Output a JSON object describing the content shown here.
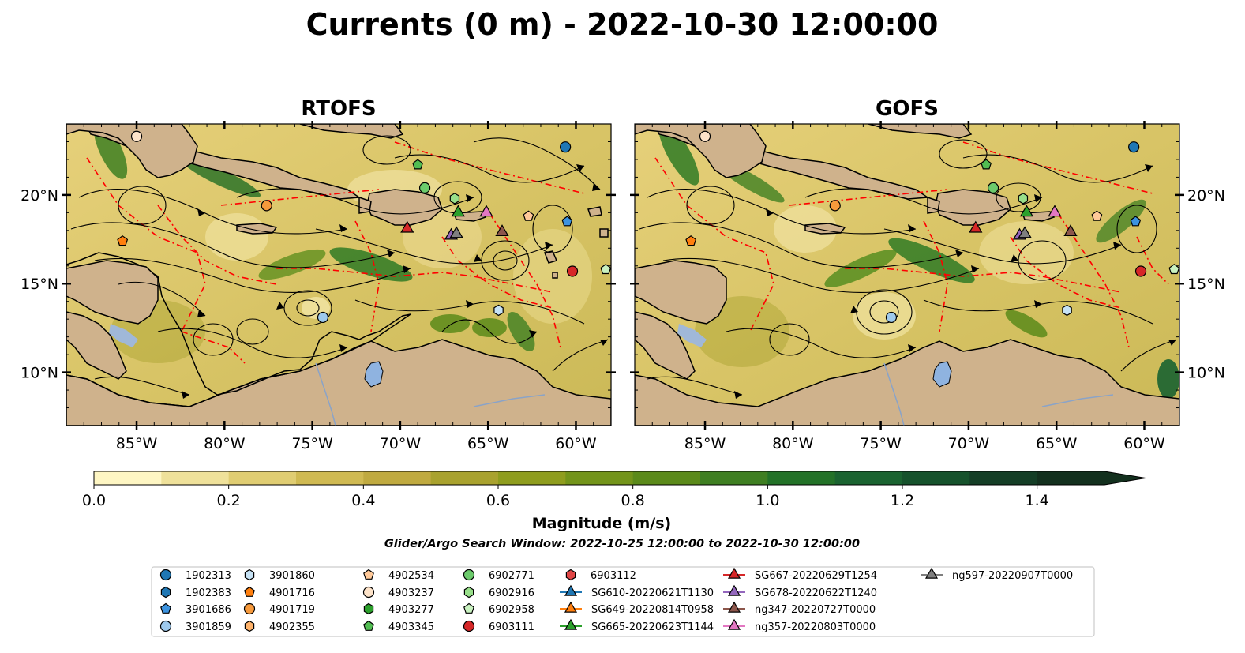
{
  "figure": {
    "suptitle": "Currents (0 m) - 2022-10-30 12:00:00",
    "panels": [
      {
        "title": "RTOFS"
      },
      {
        "title": "GOFS"
      }
    ],
    "colorbar": {
      "label": "Magnitude (m/s)",
      "ticks": [
        "0.0",
        "0.2",
        "0.4",
        "0.6",
        "0.8",
        "1.0",
        "1.2",
        "1.4"
      ],
      "min": 0.0,
      "max": 1.5,
      "levels": 15,
      "extend": "max",
      "colors": [
        "#fef6c3",
        "#efe19a",
        "#e0cd72",
        "#d0ba52",
        "#c0aa40",
        "#a9a22e",
        "#8f9d1e",
        "#73941a",
        "#5b8a1a",
        "#3f7f22",
        "#237228",
        "#1a6330",
        "#16522c",
        "#143e26",
        "#13301e"
      ]
    },
    "search_window": "Glider/Argo Search Window: 2022-10-25 12:00:00 to 2022-10-30 12:00:00",
    "map": {
      "lon_range": [
        -89,
        -58
      ],
      "lat_range": [
        7,
        24
      ],
      "lon_ticks": [
        "85°W",
        "80°W",
        "75°W",
        "70°W",
        "65°W",
        "60°W"
      ],
      "lat_ticks": [
        "20°N",
        "15°N",
        "10°N"
      ],
      "land_color": "#cfb28c",
      "eez_color": "#ff0000",
      "streamline_color": "#000000"
    },
    "legend": [
      {
        "label": "1902313",
        "marker": "circle",
        "color": "#1f77b4"
      },
      {
        "label": "1902383",
        "marker": "hexagon",
        "color": "#1f77b4"
      },
      {
        "label": "3901686",
        "marker": "pentagon",
        "color": "#3c93e0"
      },
      {
        "label": "3901859",
        "marker": "circle",
        "color": "#9ec9ec"
      },
      {
        "label": "3901860",
        "marker": "hexagon",
        "color": "#c6e2f5"
      },
      {
        "label": "4901716",
        "marker": "pentagon",
        "color": "#ff7f0e"
      },
      {
        "label": "4901719",
        "marker": "circle",
        "color": "#f79a3c"
      },
      {
        "label": "4902355",
        "marker": "hexagon",
        "color": "#ffb36b"
      },
      {
        "label": "4902534",
        "marker": "pentagon",
        "color": "#ffc999"
      },
      {
        "label": "4903237",
        "marker": "circle",
        "color": "#fde3c9"
      },
      {
        "label": "4903277",
        "marker": "hexagon",
        "color": "#2ca02c"
      },
      {
        "label": "4903345",
        "marker": "pentagon",
        "color": "#52bd52"
      },
      {
        "label": "6902771",
        "marker": "circle",
        "color": "#6ccb6c"
      },
      {
        "label": "6902916",
        "marker": "hexagon",
        "color": "#98df8a"
      },
      {
        "label": "6902958",
        "marker": "pentagon",
        "color": "#c9f2c0"
      },
      {
        "label": "6903111",
        "marker": "circle",
        "color": "#d62728"
      },
      {
        "label": "6903112",
        "marker": "hexagon",
        "color": "#e04646"
      },
      {
        "label": "SG610-20220621T1130",
        "marker": "triangle",
        "color": "#1f77b4"
      },
      {
        "label": "SG649-20220814T0958",
        "marker": "triangle",
        "color": "#ff7f0e"
      },
      {
        "label": "SG665-20220623T1144",
        "marker": "triangle",
        "color": "#2ca02c"
      },
      {
        "label": "SG667-20220629T1254",
        "marker": "triangle",
        "color": "#d62728"
      },
      {
        "label": "SG678-20220622T1240",
        "marker": "triangle",
        "color": "#9467bd"
      },
      {
        "label": "ng347-20220727T0000",
        "marker": "triangle",
        "color": "#8c564b"
      },
      {
        "label": "ng357-20220803T0000",
        "marker": "triangle",
        "color": "#e377c2"
      },
      {
        "label": "ng597-20220907T0000",
        "marker": "triangle",
        "color": "#7f7f7f"
      }
    ]
  },
  "chart_data": {
    "type": "map",
    "projection": "PlateCarree",
    "extent": {
      "lon": [
        -89,
        -58
      ],
      "lat": [
        7,
        24
      ]
    },
    "colorbar_range": [
      0.0,
      1.5
    ],
    "points": [
      {
        "id": "4903237",
        "lon": -85.0,
        "lat": 23.3,
        "marker": "circle",
        "color": "#fde3c9"
      },
      {
        "id": "1902313",
        "lon": -60.6,
        "lat": 22.7,
        "marker": "circle",
        "color": "#1f77b4"
      },
      {
        "id": "4903345",
        "lon": -69.0,
        "lat": 21.7,
        "marker": "pentagon",
        "color": "#52bd52"
      },
      {
        "id": "6902771",
        "lon": -68.6,
        "lat": 20.4,
        "marker": "circle",
        "color": "#6ccb6c"
      },
      {
        "id": "6902916",
        "lon": -66.9,
        "lat": 19.8,
        "marker": "hexagon",
        "color": "#98df8a"
      },
      {
        "id": "4901719",
        "lon": -77.6,
        "lat": 19.4,
        "marker": "circle",
        "color": "#f79a3c"
      },
      {
        "id": "4902534",
        "lon": -62.7,
        "lat": 18.8,
        "marker": "pentagon",
        "color": "#ffc999"
      },
      {
        "id": "3901686",
        "lon": -60.5,
        "lat": 18.5,
        "marker": "pentagon",
        "color": "#3c93e0"
      },
      {
        "id": "4901716",
        "lon": -85.8,
        "lat": 17.4,
        "marker": "pentagon",
        "color": "#ff7f0e"
      },
      {
        "id": "6902958",
        "lon": -58.3,
        "lat": 15.8,
        "marker": "pentagon",
        "color": "#c9f2c0"
      },
      {
        "id": "6903111",
        "lon": -60.2,
        "lat": 15.7,
        "marker": "circle",
        "color": "#d62728"
      },
      {
        "id": "3901860",
        "lon": -64.4,
        "lat": 13.5,
        "marker": "hexagon",
        "color": "#c6e2f5"
      },
      {
        "id": "3901859",
        "lon": -74.4,
        "lat": 13.1,
        "marker": "circle",
        "color": "#9ec9ec"
      },
      {
        "id": "SG665-20220623T1144",
        "lon": -66.7,
        "lat": 19.0,
        "marker": "triangle",
        "color": "#2ca02c"
      },
      {
        "id": "ng357-20220803T0000",
        "lon": -65.1,
        "lat": 19.0,
        "marker": "triangle",
        "color": "#e377c2"
      },
      {
        "id": "SG667-20220629T1254",
        "lon": -69.6,
        "lat": 18.1,
        "marker": "triangle",
        "color": "#d62728"
      },
      {
        "id": "SG678-20220622T1240",
        "lon": -67.1,
        "lat": 17.7,
        "marker": "triangle",
        "color": "#9467bd"
      },
      {
        "id": "ng597-20220907T0000",
        "lon": -66.8,
        "lat": 17.8,
        "marker": "triangle",
        "color": "#7f7f7f"
      },
      {
        "id": "ng347-20220727T0000",
        "lon": -64.2,
        "lat": 17.9,
        "marker": "triangle",
        "color": "#8c564b"
      }
    ]
  }
}
